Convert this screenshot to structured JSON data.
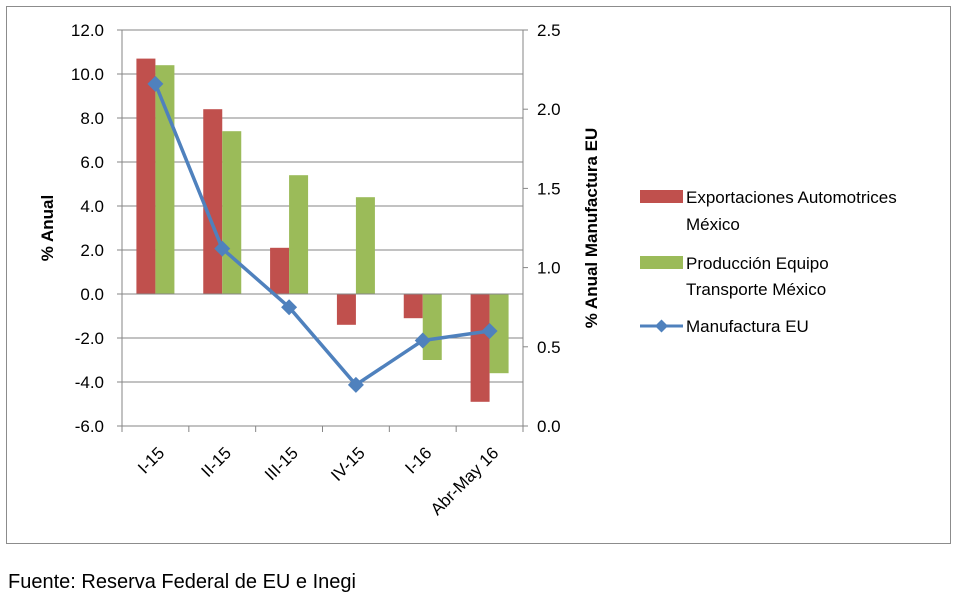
{
  "chart_data": {
    "type": "bar",
    "categories": [
      "I-15",
      "II-15",
      "III-15",
      "IV-15",
      "I-16",
      "Abr-May 16"
    ],
    "series": [
      {
        "name": "Exportaciones Automotrices México",
        "type": "bar",
        "axis": "left",
        "color": "#c0504d",
        "values": [
          10.7,
          8.4,
          2.1,
          -1.4,
          -1.1,
          -4.9
        ]
      },
      {
        "name": "Producción Equipo Transporte México",
        "type": "bar",
        "axis": "left",
        "color": "#9bbb59",
        "values": [
          10.4,
          7.4,
          5.4,
          4.4,
          -3.0,
          -3.6
        ]
      },
      {
        "name": "Manufactura EU",
        "type": "line",
        "axis": "right",
        "color": "#4f81bd",
        "marker": "diamond",
        "values": [
          2.16,
          1.12,
          0.75,
          0.26,
          0.54,
          0.6
        ]
      }
    ],
    "ylabel": "% Anual",
    "y2label": "% Anual Manufactura  EU",
    "ylim": [
      -6.0,
      12.0
    ],
    "y2lim": [
      0.0,
      2.5
    ],
    "yticks": [
      "12.0",
      "10.0",
      "8.0",
      "6.0",
      "4.0",
      "2.0",
      "0.0",
      "-2.0",
      "-4.0",
      "-6.0"
    ],
    "y2ticks": [
      "2.5",
      "2.0",
      "1.5",
      "1.0",
      "0.5",
      "0.0"
    ],
    "grid": true,
    "legend_position": "right"
  },
  "legend": {
    "exports_line1": "Exportaciones Automotrices",
    "exports_line2": "México",
    "production_line1": "Producción Equipo",
    "production_line2": "Transporte México",
    "manufactura": "Manufactura EU"
  },
  "source": "Fuente: Reserva Federal de EU e Inegi"
}
